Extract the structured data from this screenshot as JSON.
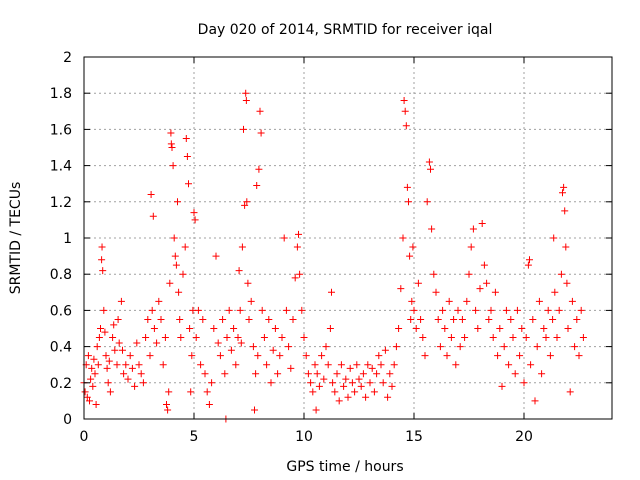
{
  "chart_data": {
    "type": "scatter",
    "title": "Day 020 of 2014, SRMTID for receiver iqal",
    "xlabel": "GPS time / hours",
    "ylabel": "SRMTID / TECUs",
    "xlim": [
      0,
      24
    ],
    "ylim": [
      0,
      2
    ],
    "xticks": [
      0,
      5,
      10,
      15,
      20
    ],
    "xtick_labels": [
      "0",
      "5",
      "10",
      "15",
      "20"
    ],
    "yticks": [
      0,
      0.2,
      0.4,
      0.6,
      0.8,
      1,
      1.2,
      1.4,
      1.6,
      1.8,
      2
    ],
    "ytick_labels": [
      "0",
      "0.2",
      "0.4",
      "0.6",
      "0.8",
      "1",
      "1.2",
      "1.4",
      "1.6",
      "1.8",
      "2"
    ],
    "grid": true,
    "marker": "+",
    "series": [
      {
        "name": "SRMTID",
        "color": "#ff0000",
        "points": [
          [
            0.0,
            0.2
          ],
          [
            0.05,
            0.15
          ],
          [
            0.1,
            0.3
          ],
          [
            0.15,
            0.12
          ],
          [
            0.2,
            0.35
          ],
          [
            0.25,
            0.1
          ],
          [
            0.3,
            0.22
          ],
          [
            0.35,
            0.28
          ],
          [
            0.4,
            0.18
          ],
          [
            0.45,
            0.33
          ],
          [
            0.5,
            0.25
          ],
          [
            0.55,
            0.08
          ],
          [
            0.6,
            0.4
          ],
          [
            0.65,
            0.3
          ],
          [
            0.7,
            0.45
          ],
          [
            0.75,
            0.5
          ],
          [
            0.8,
            0.88
          ],
          [
            0.82,
            0.95
          ],
          [
            0.85,
            0.82
          ],
          [
            0.9,
            0.6
          ],
          [
            0.95,
            0.48
          ],
          [
            1.0,
            0.35
          ],
          [
            1.05,
            0.28
          ],
          [
            1.1,
            0.2
          ],
          [
            1.15,
            0.32
          ],
          [
            1.2,
            0.15
          ],
          [
            1.3,
            0.45
          ],
          [
            1.35,
            0.52
          ],
          [
            1.4,
            0.38
          ],
          [
            1.5,
            0.3
          ],
          [
            1.55,
            0.55
          ],
          [
            1.6,
            0.42
          ],
          [
            1.7,
            0.65
          ],
          [
            1.75,
            0.38
          ],
          [
            1.8,
            0.25
          ],
          [
            1.9,
            0.3
          ],
          [
            2.0,
            0.22
          ],
          [
            2.1,
            0.35
          ],
          [
            2.2,
            0.28
          ],
          [
            2.3,
            0.18
          ],
          [
            2.4,
            0.42
          ],
          [
            2.5,
            0.3
          ],
          [
            2.6,
            0.25
          ],
          [
            2.7,
            0.2
          ],
          [
            2.8,
            0.45
          ],
          [
            2.9,
            0.55
          ],
          [
            3.0,
            0.35
          ],
          [
            3.05,
            1.24
          ],
          [
            3.1,
            0.6
          ],
          [
            3.15,
            1.12
          ],
          [
            3.2,
            0.5
          ],
          [
            3.3,
            0.42
          ],
          [
            3.4,
            0.65
          ],
          [
            3.5,
            0.55
          ],
          [
            3.6,
            0.3
          ],
          [
            3.7,
            0.45
          ],
          [
            3.75,
            0.08
          ],
          [
            3.8,
            0.05
          ],
          [
            3.85,
            0.15
          ],
          [
            3.9,
            0.75
          ],
          [
            3.95,
            1.58
          ],
          [
            3.97,
            1.52
          ],
          [
            4.0,
            1.5
          ],
          [
            4.05,
            1.4
          ],
          [
            4.1,
            1.0
          ],
          [
            4.15,
            0.9
          ],
          [
            4.2,
            0.85
          ],
          [
            4.25,
            1.2
          ],
          [
            4.3,
            0.7
          ],
          [
            4.35,
            0.55
          ],
          [
            4.4,
            0.45
          ],
          [
            4.5,
            0.8
          ],
          [
            4.6,
            0.95
          ],
          [
            4.65,
            1.55
          ],
          [
            4.7,
            1.45
          ],
          [
            4.75,
            1.3
          ],
          [
            4.8,
            0.5
          ],
          [
            4.85,
            0.15
          ],
          [
            4.9,
            0.35
          ],
          [
            4.95,
            0.6
          ],
          [
            5.0,
            1.14
          ],
          [
            5.05,
            1.1
          ],
          [
            5.1,
            0.45
          ],
          [
            5.2,
            0.6
          ],
          [
            5.3,
            0.3
          ],
          [
            5.4,
            0.55
          ],
          [
            5.5,
            0.25
          ],
          [
            5.6,
            0.15
          ],
          [
            5.7,
            0.08
          ],
          [
            5.8,
            0.2
          ],
          [
            5.9,
            0.5
          ],
          [
            6.0,
            0.9
          ],
          [
            6.1,
            0.42
          ],
          [
            6.2,
            0.35
          ],
          [
            6.3,
            0.55
          ],
          [
            6.4,
            0.25
          ],
          [
            6.45,
            0.0
          ],
          [
            6.5,
            0.45
          ],
          [
            6.6,
            0.6
          ],
          [
            6.7,
            0.38
          ],
          [
            6.8,
            0.5
          ],
          [
            6.9,
            0.3
          ],
          [
            7.0,
            0.45
          ],
          [
            7.05,
            0.82
          ],
          [
            7.1,
            0.6
          ],
          [
            7.15,
            0.42
          ],
          [
            7.2,
            0.95
          ],
          [
            7.25,
            1.6
          ],
          [
            7.3,
            1.18
          ],
          [
            7.35,
            1.8
          ],
          [
            7.38,
            1.76
          ],
          [
            7.4,
            1.2
          ],
          [
            7.45,
            0.75
          ],
          [
            7.5,
            0.55
          ],
          [
            7.6,
            0.65
          ],
          [
            7.7,
            0.4
          ],
          [
            7.75,
            0.05
          ],
          [
            7.8,
            0.25
          ],
          [
            7.85,
            1.29
          ],
          [
            7.9,
            0.35
          ],
          [
            7.95,
            1.38
          ],
          [
            8.0,
            1.7
          ],
          [
            8.05,
            1.58
          ],
          [
            8.1,
            0.6
          ],
          [
            8.2,
            0.45
          ],
          [
            8.3,
            0.3
          ],
          [
            8.4,
            0.55
          ],
          [
            8.5,
            0.2
          ],
          [
            8.6,
            0.38
          ],
          [
            8.7,
            0.5
          ],
          [
            8.8,
            0.25
          ],
          [
            8.9,
            0.35
          ],
          [
            9.0,
            0.45
          ],
          [
            9.1,
            1.0
          ],
          [
            9.2,
            0.6
          ],
          [
            9.3,
            0.4
          ],
          [
            9.4,
            0.28
          ],
          [
            9.5,
            0.55
          ],
          [
            9.6,
            0.78
          ],
          [
            9.7,
            0.95
          ],
          [
            9.75,
            1.02
          ],
          [
            9.8,
            0.8
          ],
          [
            9.9,
            0.6
          ],
          [
            10.0,
            0.45
          ],
          [
            10.1,
            0.35
          ],
          [
            10.2,
            0.25
          ],
          [
            10.3,
            0.2
          ],
          [
            10.4,
            0.15
          ],
          [
            10.5,
            0.3
          ],
          [
            10.55,
            0.05
          ],
          [
            10.6,
            0.25
          ],
          [
            10.7,
            0.18
          ],
          [
            10.8,
            0.35
          ],
          [
            10.9,
            0.22
          ],
          [
            11.0,
            0.4
          ],
          [
            11.1,
            0.3
          ],
          [
            11.2,
            0.5
          ],
          [
            11.25,
            0.7
          ],
          [
            11.3,
            0.2
          ],
          [
            11.4,
            0.15
          ],
          [
            11.5,
            0.25
          ],
          [
            11.6,
            0.1
          ],
          [
            11.7,
            0.3
          ],
          [
            11.8,
            0.18
          ],
          [
            11.9,
            0.22
          ],
          [
            12.0,
            0.12
          ],
          [
            12.1,
            0.28
          ],
          [
            12.2,
            0.2
          ],
          [
            12.3,
            0.15
          ],
          [
            12.4,
            0.3
          ],
          [
            12.5,
            0.22
          ],
          [
            12.6,
            0.18
          ],
          [
            12.7,
            0.25
          ],
          [
            12.8,
            0.12
          ],
          [
            12.9,
            0.3
          ],
          [
            13.0,
            0.2
          ],
          [
            13.1,
            0.28
          ],
          [
            13.2,
            0.15
          ],
          [
            13.3,
            0.25
          ],
          [
            13.4,
            0.35
          ],
          [
            13.5,
            0.3
          ],
          [
            13.6,
            0.2
          ],
          [
            13.7,
            0.38
          ],
          [
            13.8,
            0.12
          ],
          [
            13.9,
            0.25
          ],
          [
            14.0,
            0.18
          ],
          [
            14.1,
            0.3
          ],
          [
            14.2,
            0.4
          ],
          [
            14.3,
            0.5
          ],
          [
            14.4,
            0.72
          ],
          [
            14.5,
            1.0
          ],
          [
            14.55,
            1.76
          ],
          [
            14.6,
            1.7
          ],
          [
            14.65,
            1.62
          ],
          [
            14.7,
            1.28
          ],
          [
            14.75,
            1.2
          ],
          [
            14.8,
            0.9
          ],
          [
            14.85,
            0.55
          ],
          [
            14.9,
            0.65
          ],
          [
            14.95,
            0.95
          ],
          [
            15.0,
            0.6
          ],
          [
            15.1,
            0.5
          ],
          [
            15.2,
            0.75
          ],
          [
            15.3,
            0.55
          ],
          [
            15.4,
            0.45
          ],
          [
            15.5,
            0.35
          ],
          [
            15.6,
            1.2
          ],
          [
            15.7,
            1.42
          ],
          [
            15.75,
            1.38
          ],
          [
            15.8,
            1.05
          ],
          [
            15.9,
            0.8
          ],
          [
            16.0,
            0.7
          ],
          [
            16.1,
            0.55
          ],
          [
            16.2,
            0.4
          ],
          [
            16.3,
            0.6
          ],
          [
            16.4,
            0.5
          ],
          [
            16.5,
            0.35
          ],
          [
            16.6,
            0.65
          ],
          [
            16.7,
            0.45
          ],
          [
            16.8,
            0.55
          ],
          [
            16.9,
            0.3
          ],
          [
            17.0,
            0.6
          ],
          [
            17.1,
            0.4
          ],
          [
            17.2,
            0.55
          ],
          [
            17.3,
            0.45
          ],
          [
            17.4,
            0.65
          ],
          [
            17.5,
            0.8
          ],
          [
            17.6,
            0.95
          ],
          [
            17.7,
            1.05
          ],
          [
            17.8,
            0.6
          ],
          [
            17.9,
            0.5
          ],
          [
            18.0,
            0.72
          ],
          [
            18.1,
            1.08
          ],
          [
            18.2,
            0.85
          ],
          [
            18.3,
            0.75
          ],
          [
            18.4,
            0.55
          ],
          [
            18.5,
            0.6
          ],
          [
            18.6,
            0.45
          ],
          [
            18.7,
            0.7
          ],
          [
            18.8,
            0.35
          ],
          [
            18.9,
            0.5
          ],
          [
            19.0,
            0.18
          ],
          [
            19.1,
            0.4
          ],
          [
            19.2,
            0.6
          ],
          [
            19.3,
            0.3
          ],
          [
            19.4,
            0.55
          ],
          [
            19.5,
            0.45
          ],
          [
            19.6,
            0.25
          ],
          [
            19.7,
            0.6
          ],
          [
            19.8,
            0.35
          ],
          [
            19.9,
            0.5
          ],
          [
            20.0,
            0.2
          ],
          [
            20.1,
            0.45
          ],
          [
            20.2,
            0.85
          ],
          [
            20.25,
            0.88
          ],
          [
            20.3,
            0.3
          ],
          [
            20.4,
            0.55
          ],
          [
            20.5,
            0.1
          ],
          [
            20.6,
            0.4
          ],
          [
            20.7,
            0.65
          ],
          [
            20.8,
            0.25
          ],
          [
            20.9,
            0.5
          ],
          [
            21.0,
            0.45
          ],
          [
            21.1,
            0.6
          ],
          [
            21.2,
            0.35
          ],
          [
            21.3,
            0.55
          ],
          [
            21.35,
            1.0
          ],
          [
            21.4,
            0.7
          ],
          [
            21.5,
            0.45
          ],
          [
            21.6,
            0.6
          ],
          [
            21.7,
            0.8
          ],
          [
            21.75,
            1.25
          ],
          [
            21.8,
            1.28
          ],
          [
            21.85,
            1.15
          ],
          [
            21.9,
            0.95
          ],
          [
            21.95,
            0.75
          ],
          [
            22.0,
            0.5
          ],
          [
            22.1,
            0.15
          ],
          [
            22.2,
            0.65
          ],
          [
            22.3,
            0.4
          ],
          [
            22.4,
            0.55
          ],
          [
            22.5,
            0.35
          ],
          [
            22.6,
            0.6
          ],
          [
            22.7,
            0.45
          ]
        ]
      }
    ]
  }
}
